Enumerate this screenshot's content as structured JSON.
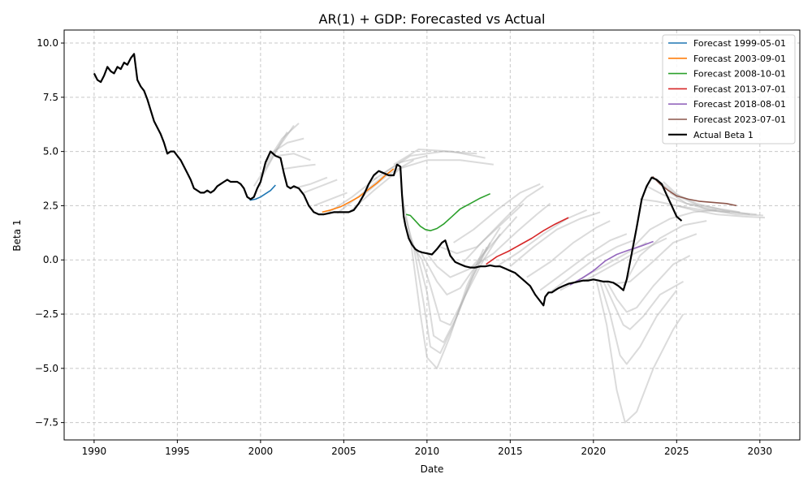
{
  "chart_data": {
    "type": "line",
    "title": "AR(1) + GDP: Forecasted vs Actual",
    "xlabel": "Date",
    "ylabel": "Beta 1",
    "xlim": [
      1988.2,
      2032.4
    ],
    "ylim": [
      -8.3,
      10.6
    ],
    "x_ticks": [
      "1990",
      "1995",
      "2000",
      "2005",
      "2010",
      "2015",
      "2020",
      "2025",
      "2030"
    ],
    "y_ticks": [
      "−7.5",
      "−5.0",
      "−2.5",
      "0.0",
      "2.5",
      "5.0",
      "7.5",
      "10.0"
    ],
    "grid": true,
    "legend_position": "top-right",
    "actual": {
      "name": "Actual Beta 1",
      "color": "#000000",
      "x": [
        1990.0,
        1990.2,
        1990.4,
        1990.6,
        1990.8,
        1991.0,
        1991.2,
        1991.4,
        1991.6,
        1991.8,
        1992.0,
        1992.2,
        1992.4,
        1992.6,
        1992.8,
        1993.0,
        1993.2,
        1993.4,
        1993.6,
        1993.8,
        1994.0,
        1994.2,
        1994.4,
        1994.6,
        1994.8,
        1995.0,
        1995.2,
        1995.4,
        1995.6,
        1995.8,
        1996.0,
        1996.2,
        1996.4,
        1996.6,
        1996.8,
        1997.0,
        1997.2,
        1997.4,
        1997.6,
        1997.8,
        1998.0,
        1998.2,
        1998.4,
        1998.6,
        1998.8,
        1999.0,
        1999.2,
        1999.4,
        1999.6,
        1999.8,
        2000.0,
        2000.3,
        2000.6,
        2000.9,
        2001.2,
        2001.4,
        2001.6,
        2001.8,
        2002.0,
        2002.3,
        2002.6,
        2002.9,
        2003.2,
        2003.5,
        2003.8,
        2004.1,
        2004.4,
        2004.7,
        2005.0,
        2005.3,
        2005.6,
        2005.9,
        2006.2,
        2006.5,
        2006.8,
        2007.1,
        2007.4,
        2007.7,
        2008.0,
        2008.2,
        2008.4,
        2008.5,
        2008.6,
        2008.7,
        2008.9,
        2009.1,
        2009.3,
        2009.5,
        2009.7,
        2010.0,
        2010.3,
        2010.6,
        2010.9,
        2011.1,
        2011.4,
        2011.7,
        2012.0,
        2012.3,
        2012.6,
        2012.9,
        2013.2,
        2013.5,
        2013.8,
        2014.1,
        2014.4,
        2014.7,
        2015.0,
        2015.3,
        2015.6,
        2015.9,
        2016.2,
        2016.5,
        2016.8,
        2017.0,
        2017.1,
        2017.3,
        2017.5,
        2017.7,
        2017.9,
        2018.2,
        2018.5,
        2018.8,
        2019.1,
        2019.4,
        2019.7,
        2020.0,
        2020.3,
        2020.6,
        2020.9,
        2021.2,
        2021.5,
        2021.8,
        2022.0,
        2022.3,
        2022.6,
        2022.9,
        2023.2,
        2023.5,
        2023.8,
        2024.1,
        2024.4,
        2024.7,
        2025.0,
        2025.3
      ],
      "y": [
        8.6,
        8.3,
        8.2,
        8.5,
        8.9,
        8.7,
        8.6,
        8.9,
        8.8,
        9.1,
        9.0,
        9.3,
        9.5,
        8.3,
        8.0,
        7.8,
        7.4,
        6.9,
        6.4,
        6.1,
        5.8,
        5.4,
        4.9,
        5.0,
        5.0,
        4.8,
        4.6,
        4.3,
        4.0,
        3.7,
        3.3,
        3.2,
        3.1,
        3.1,
        3.2,
        3.1,
        3.2,
        3.4,
        3.5,
        3.6,
        3.7,
        3.6,
        3.6,
        3.6,
        3.5,
        3.3,
        2.9,
        2.8,
        2.9,
        3.3,
        3.6,
        4.5,
        5.0,
        4.8,
        4.7,
        4.0,
        3.4,
        3.3,
        3.4,
        3.3,
        3.0,
        2.5,
        2.2,
        2.1,
        2.1,
        2.15,
        2.2,
        2.2,
        2.2,
        2.2,
        2.3,
        2.6,
        3.0,
        3.5,
        3.9,
        4.1,
        4.0,
        3.9,
        3.9,
        4.4,
        4.3,
        3.0,
        2.0,
        1.6,
        1.0,
        0.7,
        0.5,
        0.4,
        0.35,
        0.3,
        0.25,
        0.5,
        0.8,
        0.9,
        0.2,
        -0.1,
        -0.2,
        -0.3,
        -0.35,
        -0.35,
        -0.3,
        -0.3,
        -0.25,
        -0.3,
        -0.3,
        -0.4,
        -0.5,
        -0.6,
        -0.8,
        -1.0,
        -1.2,
        -1.6,
        -1.9,
        -2.1,
        -1.7,
        -1.5,
        -1.5,
        -1.4,
        -1.3,
        -1.2,
        -1.1,
        -1.05,
        -1.0,
        -0.95,
        -0.95,
        -0.9,
        -0.95,
        -1.0,
        -1.0,
        -1.05,
        -1.2,
        -1.4,
        -0.9,
        0.3,
        1.5,
        2.8,
        3.4,
        3.8,
        3.7,
        3.5,
        3.0,
        2.5,
        2.0,
        1.8
      ]
    },
    "forecasts": [
      {
        "name": "Forecast 1999-05-01",
        "color": "#1f77b4",
        "x": [
          1999.35,
          1999.7,
          2000.0,
          2000.3,
          2000.6,
          2000.9
        ],
        "y": [
          2.75,
          2.8,
          2.9,
          3.05,
          3.2,
          3.45
        ]
      },
      {
        "name": "Forecast 2003-09-01",
        "color": "#ff7f0e",
        "x": [
          2003.7,
          2004.2,
          2004.8,
          2005.3,
          2005.9,
          2006.4,
          2007.0,
          2007.5,
          2008.0
        ],
        "y": [
          2.2,
          2.3,
          2.45,
          2.65,
          2.9,
          3.2,
          3.55,
          3.9,
          4.2
        ]
      },
      {
        "name": "Forecast 2008-10-01",
        "color": "#2ca02c",
        "x": [
          2008.75,
          2009.0,
          2009.3,
          2009.6,
          2009.9,
          2010.2,
          2010.6,
          2011.0,
          2011.5,
          2012.0,
          2012.6,
          2013.2,
          2013.8
        ],
        "y": [
          2.1,
          2.05,
          1.8,
          1.55,
          1.4,
          1.35,
          1.45,
          1.65,
          2.0,
          2.35,
          2.6,
          2.85,
          3.05
        ]
      },
      {
        "name": "Forecast 2013-07-01",
        "color": "#d62728",
        "x": [
          2013.55,
          2014.2,
          2014.9,
          2015.6,
          2016.3,
          2017.0,
          2017.7,
          2018.5
        ],
        "y": [
          -0.2,
          0.15,
          0.4,
          0.7,
          1.0,
          1.35,
          1.65,
          1.95
        ]
      },
      {
        "name": "Forecast 2018-08-01",
        "color": "#9467bd",
        "x": [
          2018.6,
          2019.3,
          2020.0,
          2020.7,
          2021.4,
          2022.1,
          2022.9,
          2023.6
        ],
        "y": [
          -1.15,
          -0.85,
          -0.5,
          -0.05,
          0.25,
          0.45,
          0.65,
          0.85
        ]
      },
      {
        "name": "Forecast 2023-07-01",
        "color": "#8c564b",
        "x": [
          2023.55,
          2024.0,
          2024.5,
          2025.0,
          2025.7,
          2026.4,
          2027.2,
          2028.0,
          2028.6
        ],
        "y": [
          3.85,
          3.5,
          3.2,
          2.95,
          2.8,
          2.7,
          2.65,
          2.6,
          2.5
        ]
      }
    ],
    "background_forecasts": {
      "color": "#b0b0b0",
      "paths": [
        {
          "x": [
            1999.6,
            2000.6,
            2001.6
          ],
          "y": [
            3.4,
            4.6,
            5.9
          ]
        },
        {
          "x": [
            2000.0,
            2001.0,
            2002.0
          ],
          "y": [
            3.7,
            5.1,
            6.2
          ]
        },
        {
          "x": [
            2000.3,
            2001.3,
            2002.3
          ],
          "y": [
            4.4,
            5.6,
            6.3
          ]
        },
        {
          "x": [
            2000.6,
            2001.6,
            2002.6
          ],
          "y": [
            4.9,
            5.4,
            5.6
          ]
        },
        {
          "x": [
            2001.0,
            2002.0,
            2003.0
          ],
          "y": [
            4.8,
            4.9,
            4.6
          ]
        },
        {
          "x": [
            2001.4,
            2002.3,
            2003.3
          ],
          "y": [
            4.2,
            4.3,
            4.4
          ]
        },
        {
          "x": [
            2002.0,
            2003.0,
            2004.0
          ],
          "y": [
            3.3,
            3.5,
            3.8
          ]
        },
        {
          "x": [
            2002.6,
            2003.6,
            2004.6
          ],
          "y": [
            3.1,
            3.4,
            3.7
          ]
        },
        {
          "x": [
            2003.2,
            2004.2,
            2005.2
          ],
          "y": [
            2.5,
            2.8,
            3.1
          ]
        },
        {
          "x": [
            2004.0,
            2005.5,
            2007.0
          ],
          "y": [
            2.15,
            2.9,
            3.8
          ]
        },
        {
          "x": [
            2004.6,
            2006.0,
            2007.6
          ],
          "y": [
            2.15,
            3.0,
            4.0
          ]
        },
        {
          "x": [
            2005.4,
            2006.8,
            2008.4
          ],
          "y": [
            2.25,
            3.2,
            4.2
          ]
        },
        {
          "x": [
            2006.2,
            2007.6,
            2009.2
          ],
          "y": [
            3.0,
            3.9,
            4.6
          ]
        },
        {
          "x": [
            2006.8,
            2008.4,
            2010.0
          ],
          "y": [
            3.7,
            4.5,
            4.8
          ]
        },
        {
          "x": [
            2007.4,
            2009.0,
            2011.0,
            2013.0
          ],
          "y": [
            4.0,
            4.8,
            5.0,
            4.9
          ]
        },
        {
          "x": [
            2008.0,
            2009.5,
            2011.5,
            2013.5
          ],
          "y": [
            4.4,
            5.1,
            5.0,
            4.7
          ]
        },
        {
          "x": [
            2008.3,
            2010.0,
            2012.0,
            2014.0
          ],
          "y": [
            4.2,
            4.6,
            4.6,
            4.4
          ]
        },
        {
          "x": [
            2008.5,
            2009.0,
            2009.6,
            2010.0,
            2010.6,
            2011.4,
            2012.4,
            2013.4
          ],
          "y": [
            3.0,
            1.0,
            -2.5,
            -4.5,
            -5.0,
            -3.5,
            -1.2,
            0.5
          ]
        },
        {
          "x": [
            2008.7,
            2009.2,
            2009.8,
            2010.2,
            2010.8,
            2011.6,
            2012.6,
            2013.6
          ],
          "y": [
            2.0,
            0.6,
            -2.0,
            -4.0,
            -4.3,
            -3.0,
            -1.0,
            0.6
          ]
        },
        {
          "x": [
            2008.9,
            2009.4,
            2010.0,
            2010.4,
            2011.0,
            2011.8,
            2012.8,
            2013.8
          ],
          "y": [
            1.2,
            0.3,
            -1.5,
            -3.5,
            -3.8,
            -2.6,
            -0.7,
            0.8
          ]
        },
        {
          "x": [
            2009.2,
            2009.7,
            2010.2,
            2010.8,
            2011.4,
            2012.2,
            2013.4,
            2014.4
          ],
          "y": [
            0.6,
            0.0,
            -1.2,
            -2.8,
            -3.0,
            -1.8,
            0.0,
            1.2
          ]
        },
        {
          "x": [
            2009.6,
            2010.1,
            2010.6,
            2011.2,
            2012.0,
            2013.0,
            2014.4
          ],
          "y": [
            0.4,
            -0.3,
            -1.0,
            -1.6,
            -1.3,
            -0.2,
            1.5
          ]
        },
        {
          "x": [
            2010.0,
            2010.6,
            2011.4,
            2012.6,
            2014.0,
            2015.4
          ],
          "y": [
            0.3,
            -0.3,
            -0.8,
            -0.4,
            0.8,
            2.0
          ]
        },
        {
          "x": [
            2010.8,
            2011.8,
            2013.0,
            2014.4,
            2015.8
          ],
          "y": [
            0.6,
            0.3,
            0.6,
            1.6,
            2.6
          ]
        },
        {
          "x": [
            2011.6,
            2012.8,
            2014.2,
            2015.6,
            2016.8
          ],
          "y": [
            0.8,
            1.4,
            2.3,
            3.1,
            3.5
          ]
        },
        {
          "x": [
            2012.2,
            2013.4,
            2014.8,
            2016.0,
            2017.0
          ],
          "y": [
            -0.1,
            0.9,
            2.0,
            2.9,
            3.4
          ]
        },
        {
          "x": [
            2012.8,
            2014.0,
            2015.4,
            2016.6,
            2017.4
          ],
          "y": [
            -0.3,
            0.3,
            1.3,
            2.1,
            2.6
          ]
        },
        {
          "x": [
            2014.2,
            2015.6,
            2017.0,
            2018.4,
            2019.6
          ],
          "y": [
            -0.3,
            0.4,
            1.2,
            1.9,
            2.3
          ]
        },
        {
          "x": [
            2015.0,
            2016.4,
            2017.8,
            2019.2,
            2020.4
          ],
          "y": [
            -0.3,
            0.6,
            1.4,
            1.9,
            2.2
          ]
        },
        {
          "x": [
            2016.0,
            2017.4,
            2018.8,
            2020.2,
            2021.0
          ],
          "y": [
            -0.8,
            -0.1,
            0.8,
            1.5,
            1.8
          ]
        },
        {
          "x": [
            2016.8,
            2018.2,
            2019.6,
            2021.0,
            2022.0
          ],
          "y": [
            -1.4,
            -0.6,
            0.2,
            0.9,
            1.2
          ]
        },
        {
          "x": [
            2017.2,
            2018.6,
            2020.0,
            2021.4,
            2022.4
          ],
          "y": [
            -1.6,
            -0.8,
            0.0,
            0.6,
            0.9
          ]
        },
        {
          "x": [
            2018.0,
            2019.4,
            2020.8,
            2022.2,
            2023.2
          ],
          "y": [
            -1.4,
            -0.8,
            -0.2,
            0.4,
            0.8
          ]
        },
        {
          "x": [
            2019.4,
            2020.8,
            2022.2,
            2023.6,
            2024.4
          ],
          "y": [
            -1.0,
            -0.4,
            0.2,
            0.7,
            1.0
          ]
        },
        {
          "x": [
            2020.2,
            2020.8,
            2021.4,
            2021.9,
            2022.6,
            2023.6,
            2024.8,
            2025.4
          ],
          "y": [
            -1.0,
            -3.0,
            -6.0,
            -7.5,
            -7.0,
            -5.0,
            -3.2,
            -2.5
          ]
        },
        {
          "x": [
            2020.4,
            2021.0,
            2021.6,
            2022.0,
            2022.8,
            2023.8,
            2025.0
          ],
          "y": [
            -1.0,
            -2.5,
            -4.4,
            -4.8,
            -4.0,
            -2.6,
            -1.4
          ]
        },
        {
          "x": [
            2020.6,
            2021.2,
            2021.8,
            2022.2,
            2023.0,
            2024.0,
            2025.4
          ],
          "y": [
            -1.0,
            -2.0,
            -3.0,
            -3.2,
            -2.6,
            -1.6,
            -1.0
          ]
        },
        {
          "x": [
            2020.8,
            2021.4,
            2022.0,
            2022.6,
            2023.6,
            2024.8,
            2025.8
          ],
          "y": [
            -1.0,
            -1.8,
            -2.4,
            -2.2,
            -1.2,
            -0.2,
            0.2
          ]
        },
        {
          "x": [
            2021.2,
            2022.2,
            2023.4,
            2024.8,
            2026.2
          ],
          "y": [
            -1.1,
            -1.0,
            -0.2,
            0.8,
            1.2
          ]
        },
        {
          "x": [
            2021.8,
            2022.8,
            2024.0,
            2025.4,
            2026.8
          ],
          "y": [
            -1.2,
            0.2,
            1.0,
            1.6,
            1.8
          ]
        },
        {
          "x": [
            2022.4,
            2023.4,
            2024.6,
            2026.0,
            2027.4
          ],
          "y": [
            0.6,
            1.4,
            1.9,
            2.2,
            2.3
          ]
        },
        {
          "x": [
            2022.8,
            2023.8,
            2025.0,
            2026.6,
            2028.2
          ],
          "y": [
            2.8,
            2.7,
            2.5,
            2.3,
            2.2
          ]
        },
        {
          "x": [
            2023.2,
            2024.2,
            2025.6,
            2027.2,
            2028.8
          ],
          "y": [
            3.4,
            3.0,
            2.6,
            2.4,
            2.2
          ]
        },
        {
          "x": [
            2023.8,
            2024.8,
            2026.2,
            2027.8,
            2029.4
          ],
          "y": [
            3.7,
            3.1,
            2.6,
            2.3,
            2.1
          ]
        },
        {
          "x": [
            2024.2,
            2025.2,
            2026.6,
            2028.2,
            2029.8
          ],
          "y": [
            3.6,
            2.9,
            2.4,
            2.2,
            2.1
          ]
        },
        {
          "x": [
            2024.6,
            2025.6,
            2027.0,
            2028.6,
            2030.2
          ],
          "y": [
            3.1,
            2.6,
            2.3,
            2.1,
            2.05
          ]
        },
        {
          "x": [
            2025.0,
            2026.0,
            2027.4,
            2029.0,
            2030.3
          ],
          "y": [
            2.5,
            2.3,
            2.1,
            2.0,
            1.95
          ]
        }
      ]
    }
  }
}
